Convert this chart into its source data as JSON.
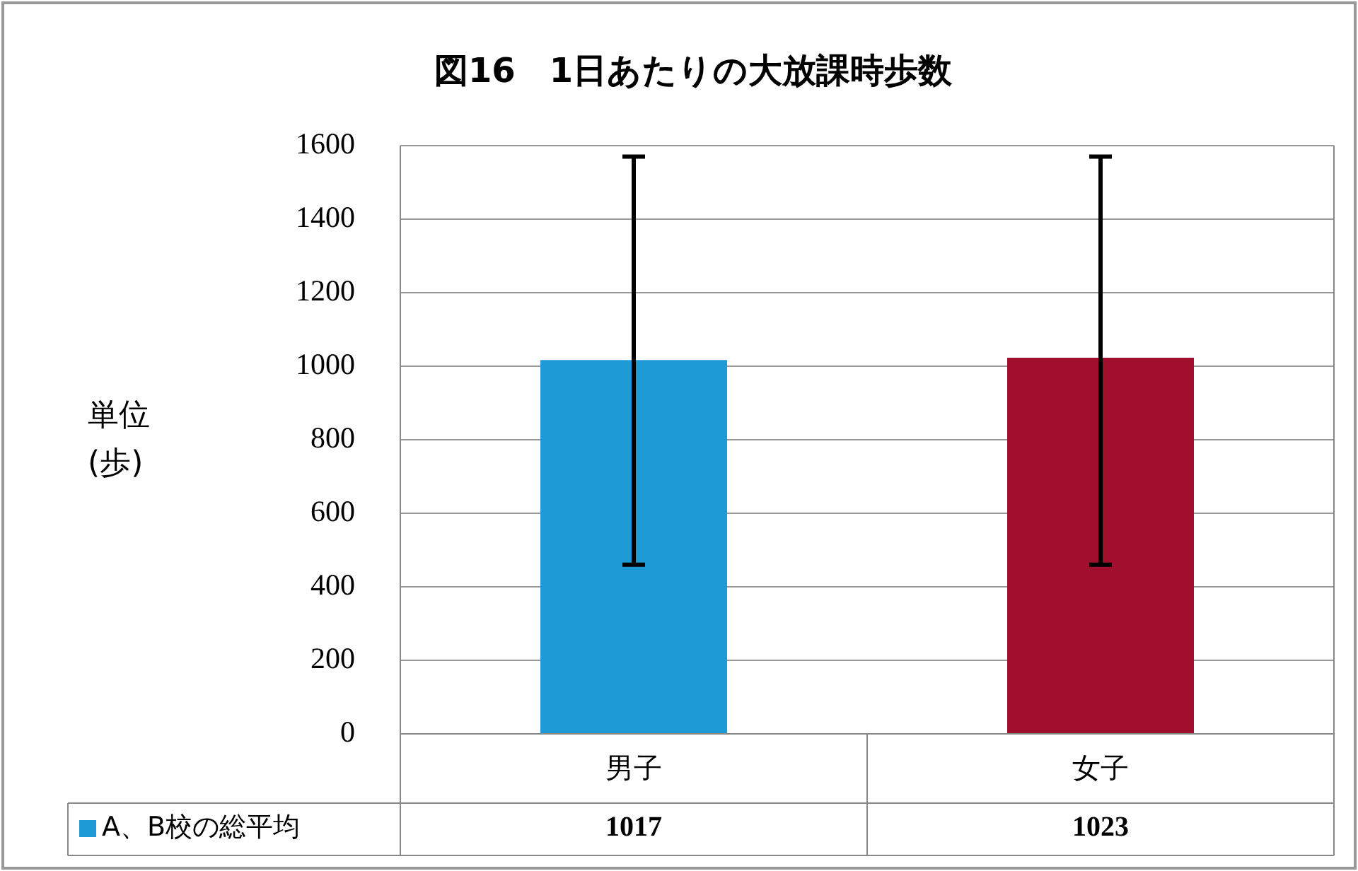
{
  "chart_data": {
    "type": "bar",
    "title": "図16　1日あたりの大放課時歩数",
    "ylabel": "単位\n(歩)",
    "categories": [
      "男子",
      "女子"
    ],
    "series": [
      {
        "name": "A、B校の総平均",
        "color": "#1e9ad6",
        "colors": [
          "#1e9ad6",
          "#a0102e"
        ],
        "values": [
          1017,
          1023
        ],
        "errors": [
          [
            460,
            1570
          ],
          [
            460,
            1570
          ]
        ]
      }
    ],
    "ylim": [
      0,
      1600
    ],
    "yticks": [
      0,
      200,
      400,
      600,
      800,
      1000,
      1200,
      1400,
      1600
    ],
    "grid": "y",
    "legend": "bottom left",
    "data_labels": true
  }
}
